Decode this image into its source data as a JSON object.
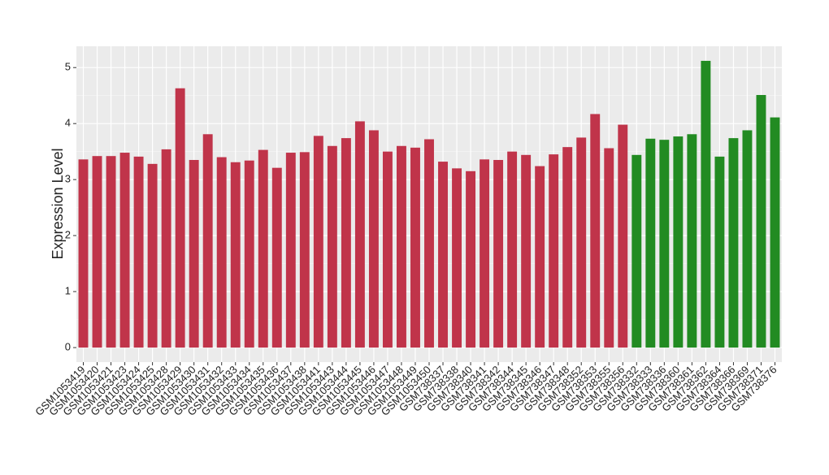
{
  "chart_data": {
    "type": "bar",
    "y_label": "Expression Level",
    "categories": [
      "GSM1053419",
      "GSM1053420",
      "GSM1053421",
      "GSM1053423",
      "GSM1053424",
      "GSM1053425",
      "GSM1053428",
      "GSM1053429",
      "GSM1053430",
      "GSM1053431",
      "GSM1053432",
      "GSM1053433",
      "GSM1053434",
      "GSM1053435",
      "GSM1053436",
      "GSM1053437",
      "GSM1053438",
      "GSM1053441",
      "GSM1053443",
      "GSM1053444",
      "GSM1053445",
      "GSM1053446",
      "GSM1053447",
      "GSM1053448",
      "GSM1053449",
      "GSM1053450",
      "GSM738337",
      "GSM738338",
      "GSM738340",
      "GSM738341",
      "GSM738342",
      "GSM738344",
      "GSM738345",
      "GSM738346",
      "GSM738347",
      "GSM738348",
      "GSM738352",
      "GSM738353",
      "GSM738355",
      "GSM738356",
      "GSM738332",
      "GSM738333",
      "GSM738336",
      "GSM738360",
      "GSM738361",
      "GSM738362",
      "GSM738364",
      "GSM738366",
      "GSM738369",
      "GSM738371",
      "GSM738376"
    ],
    "values": [
      3.36,
      3.42,
      3.42,
      3.48,
      3.41,
      3.28,
      3.54,
      4.63,
      3.35,
      3.81,
      3.4,
      3.31,
      3.34,
      3.53,
      3.21,
      3.48,
      3.49,
      3.78,
      3.6,
      3.74,
      4.04,
      3.88,
      3.5,
      3.6,
      3.57,
      3.72,
      3.32,
      3.2,
      3.15,
      3.36,
      3.35,
      3.5,
      3.44,
      3.24,
      3.45,
      3.58,
      3.75,
      4.17,
      3.56,
      3.98,
      3.44,
      3.73,
      3.71,
      3.77,
      3.81,
      5.12,
      3.41,
      3.74,
      3.88,
      4.51,
      4.11
    ],
    "colors": [
      "#c0344a",
      "#c0344a",
      "#c0344a",
      "#c0344a",
      "#c0344a",
      "#c0344a",
      "#c0344a",
      "#c0344a",
      "#c0344a",
      "#c0344a",
      "#c0344a",
      "#c0344a",
      "#c0344a",
      "#c0344a",
      "#c0344a",
      "#c0344a",
      "#c0344a",
      "#c0344a",
      "#c0344a",
      "#c0344a",
      "#c0344a",
      "#c0344a",
      "#c0344a",
      "#c0344a",
      "#c0344a",
      "#c0344a",
      "#c0344a",
      "#c0344a",
      "#c0344a",
      "#c0344a",
      "#c0344a",
      "#c0344a",
      "#c0344a",
      "#c0344a",
      "#c0344a",
      "#c0344a",
      "#c0344a",
      "#c0344a",
      "#c0344a",
      "#c0344a",
      "#228b22",
      "#228b22",
      "#228b22",
      "#228b22",
      "#228b22",
      "#228b22",
      "#228b22",
      "#228b22",
      "#228b22",
      "#228b22",
      "#228b22"
    ],
    "ylim": [
      -0.26,
      5.38
    ],
    "yticks": [
      0,
      1,
      2,
      3,
      4,
      5
    ],
    "grid": true
  }
}
